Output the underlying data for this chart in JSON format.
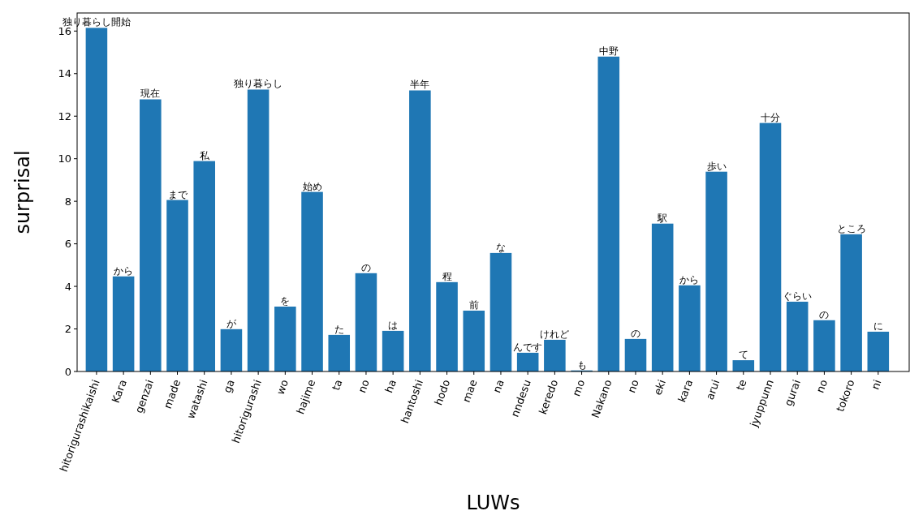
{
  "chart_data": {
    "type": "bar",
    "xlabel": "LUWs",
    "ylabel": "surprisal",
    "color": "#1f77b4",
    "categories": [
      "hitorigurashikaishi",
      "Kara",
      "genzai",
      "made",
      "watashi",
      "ga",
      "hitorigurashi",
      "wo",
      "hajime",
      "ta",
      "no",
      "ha",
      "hantoshi",
      "hodo",
      "mae",
      "na",
      "nndesu",
      "keredo",
      "mo",
      "Nakano",
      "no",
      "eki",
      "kara",
      "arui",
      "te",
      "jyuppunn",
      "gurai",
      "no",
      "tokoro",
      "ni"
    ],
    "values": [
      16.15,
      4.47,
      12.79,
      8.06,
      9.89,
      1.99,
      13.25,
      3.05,
      8.44,
      1.72,
      4.62,
      1.91,
      13.21,
      4.2,
      2.86,
      5.57,
      0.88,
      1.49,
      0.05,
      14.8,
      1.53,
      6.95,
      4.05,
      9.39,
      0.53,
      11.68,
      3.28,
      2.41,
      6.45,
      1.87
    ],
    "value_labels": [
      "独り暮らし開始",
      "から",
      "現在",
      "まで",
      "私",
      "が",
      "独り暮らし",
      "を",
      "始め",
      "た",
      "の",
      "は",
      "半年",
      "程",
      "前",
      "な",
      "んです",
      "けれど",
      "も",
      "中野",
      "の",
      "駅",
      "から",
      "歩い",
      "て",
      "十分",
      "ぐらい",
      "の",
      "ところ",
      "に"
    ],
    "ylim": [
      0,
      16.85
    ],
    "yticks": [
      0,
      2,
      4,
      6,
      8,
      10,
      12,
      14,
      16
    ],
    "grid": false
  }
}
